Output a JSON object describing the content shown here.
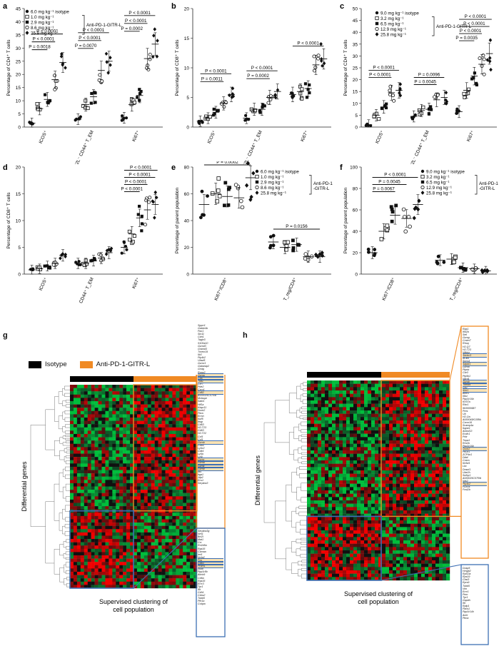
{
  "panels": {
    "a": {
      "label": "a",
      "ylabel": "Percentage of CD4⁺ T cells",
      "ylim": [
        0,
        45
      ],
      "yticks": [
        0,
        5,
        10,
        15,
        20,
        25,
        30,
        35,
        40,
        45
      ],
      "categories": [
        "ICOS⁺",
        "CD62L⁻ CD44⁺ T_EM",
        "Ki67⁺"
      ],
      "legend": [
        "6.0 mg kg⁻¹ isotype",
        "1.0 mg kg⁻¹",
        "2.9 mg kg⁻¹",
        "8.6 mg kg⁻¹",
        "25.8 mg kg⁻¹"
      ],
      "bracket_label": "Anti-PD-1-GITR-L",
      "groups": [
        {
          "means": [
            1.5,
            7.0,
            10.5,
            18.0,
            24.5
          ]
        },
        {
          "means": [
            3.0,
            8.5,
            11.5,
            21.5,
            25.0
          ]
        },
        {
          "means": [
            3.5,
            8.5,
            12.0,
            26.0,
            31.5
          ]
        }
      ],
      "pvalues": [
        {
          "cat": 0,
          "to": 2,
          "text": "P = 0.0018"
        },
        {
          "cat": 0,
          "to": 3,
          "text": "P < 0.0001"
        },
        {
          "cat": 0,
          "to": 4,
          "text": "P < 0.0001"
        },
        {
          "cat": 1,
          "to": 2,
          "text": "P = 0.0070"
        },
        {
          "cat": 1,
          "to": 3,
          "text": "P < 0.0001"
        },
        {
          "cat": 1,
          "to": 4,
          "text": "P < 0.0001"
        },
        {
          "cat": 2,
          "to": 2,
          "text": "P = 0.0002"
        },
        {
          "cat": 2,
          "to": 3,
          "text": "P < 0.0001"
        },
        {
          "cat": 2,
          "to": 4,
          "text": "P < 0.0001"
        }
      ]
    },
    "b": {
      "label": "b",
      "ylabel": "Percentage of CD8⁺ T cells",
      "ylim": [
        0,
        20
      ],
      "yticks": [
        0,
        5,
        10,
        15,
        20
      ],
      "categories": [
        "ICOS⁺",
        "CL62L⁻ CD44⁺ T_EM",
        "Ki67⁺"
      ],
      "groups": [
        {
          "means": [
            1.0,
            1.5,
            2.5,
            4.0,
            5.5
          ]
        },
        {
          "means": [
            1.5,
            3.0,
            3.0,
            5.0,
            6.0
          ]
        },
        {
          "means": [
            5.5,
            6.0,
            6.5,
            10.5,
            11.5
          ]
        }
      ],
      "pvalues": [
        {
          "cat": 0,
          "to": 3,
          "text": "P = 0.0011"
        },
        {
          "cat": 0,
          "to": 4,
          "text": "P < 0.0001"
        },
        {
          "cat": 1,
          "to": 3,
          "text": "P = 0.0002"
        },
        {
          "cat": 1,
          "to": 4,
          "text": "P < 0.0001"
        },
        {
          "cat": 2,
          "to": 4,
          "text": "P < 0.0001"
        }
      ]
    },
    "c": {
      "label": "c",
      "ylabel": "Percentage of CD4⁺ T cells",
      "ylim": [
        0,
        50
      ],
      "yticks": [
        0,
        5,
        10,
        15,
        20,
        25,
        30,
        35,
        40,
        45,
        50
      ],
      "categories": [
        "ICOS⁺",
        "CD62L⁻ CD44⁺ T_EM",
        "Ki67⁺"
      ],
      "legend": [
        "9.0 mg kg⁻¹ isotype",
        "3.2 mg kg⁻¹",
        "6.5 mg kg⁻¹",
        "12.9 mg kg⁻¹",
        "25.8 mg kg⁻¹"
      ],
      "bracket_label": "Anti-PD-1-GITR-L",
      "groups": [
        {
          "means": [
            1.0,
            5.0,
            8.5,
            14.5,
            15.5
          ]
        },
        {
          "means": [
            4.5,
            7.0,
            7.5,
            11.5,
            12.5
          ]
        },
        {
          "means": [
            6.5,
            15.5,
            21.5,
            26.5,
            31.0
          ]
        }
      ],
      "pvalues": [
        {
          "cat": 0,
          "to": 3,
          "text": "P < 0.0001"
        },
        {
          "cat": 0,
          "to": 4,
          "text": "P < 0.0001"
        },
        {
          "cat": 1,
          "to": 3,
          "text": "P = 0.0045"
        },
        {
          "cat": 1,
          "to": 4,
          "text": "P = 0.0096"
        },
        {
          "cat": 2,
          "to": 2,
          "text": "P = 0.0035"
        },
        {
          "cat": 2,
          "to": 3,
          "text": "P < 0.0001"
        },
        {
          "cat": 2,
          "to": 4,
          "text": "P < 0.0001"
        },
        {
          "cat": 2,
          "to": 5,
          "text": "P < 0.0001"
        }
      ]
    },
    "d": {
      "label": "d",
      "ylabel": "Percentage of CD8⁺ T cells",
      "ylim": [
        0,
        20
      ],
      "yticks": [
        0,
        5,
        10,
        15,
        20
      ],
      "categories": [
        "ICOS⁺",
        "CD62L⁻ CD44⁺ T_EM",
        "Ki67⁺"
      ],
      "groups": [
        {
          "means": [
            0.8,
            1.0,
            1.5,
            2.0,
            3.5
          ]
        },
        {
          "means": [
            2.0,
            2.0,
            2.5,
            3.0,
            4.0
          ]
        },
        {
          "means": [
            5.0,
            7.5,
            10.5,
            12.0,
            13.0
          ]
        }
      ],
      "pvalues": [
        {
          "cat": 2,
          "to": 2,
          "text": "P < 0.0001"
        },
        {
          "cat": 2,
          "to": 3,
          "text": "P < 0.0001"
        },
        {
          "cat": 2,
          "to": 4,
          "text": "P < 0.0001"
        },
        {
          "cat": 2,
          "to": 5,
          "text": "P < 0.0001"
        }
      ]
    },
    "e": {
      "label": "e",
      "ylabel": "Percentage of parent population",
      "ylim": [
        0,
        80
      ],
      "yticks": [
        0,
        20,
        40,
        60,
        80
      ],
      "categories": [
        "Ki67⁺/CD8⁺",
        "T_reg/CD4⁺"
      ],
      "legend": [
        "6.0 mg kg⁻¹ isotype",
        "1.0 mg kg⁻¹",
        "2.9 mg kg⁻¹",
        "8.6 mg kg⁻¹",
        "25.8 mg kg⁻¹"
      ],
      "bracket_label": "Anti-PD-1 -GITR-L",
      "groups": [
        {
          "means": [
            52,
            60,
            58,
            57,
            72
          ]
        },
        {
          "means": [
            24,
            20,
            22,
            13,
            13
          ]
        }
      ],
      "pvalues": [
        {
          "cat": 0,
          "to": 4,
          "text": "P = 0.0002"
        },
        {
          "cat": 1,
          "to": 4,
          "text": "P = 0.0156"
        }
      ]
    },
    "f": {
      "label": "f",
      "ylabel": "Percentage of parent population",
      "ylim": [
        0,
        100
      ],
      "yticks": [
        0,
        20,
        40,
        60,
        80,
        100
      ],
      "categories": [
        "Ki67⁺/CD8⁺",
        "T_reg/CD4⁺"
      ],
      "legend": [
        "9.0 mg kg⁻¹ isotype",
        "3.2 mg kg⁻¹",
        "6.5 mg kg⁻¹",
        "12.9 mg kg⁻¹",
        "25.8 mg kg⁻¹"
      ],
      "bracket_label": "Anti-PD-1 -GITR-L",
      "groups": [
        {
          "means": [
            20,
            40,
            55,
            52,
            65
          ]
        },
        {
          "means": [
            13,
            14,
            6,
            5,
            3
          ]
        }
      ],
      "pvalues": [
        {
          "cat": 0,
          "to": 2,
          "text": "P = 0.0067"
        },
        {
          "cat": 0,
          "to": 3,
          "text": "P = 0.0045"
        },
        {
          "cat": 0,
          "to": 4,
          "text": "P < 0.0001"
        }
      ]
    }
  },
  "heatmap": {
    "label_g": "g",
    "label_h": "h",
    "legend_isotype": "Isotype",
    "legend_treatment": "Anti-PD-1-GITR-L",
    "color_isotype": "#000000",
    "color_treatment": "#f08a24",
    "color_up": "#e0202a",
    "color_down": "#1f9a3a",
    "ylabel": "Differential genes",
    "xlabel": "Supervised clustering of cell population",
    "genes_g_top": [
      "Spprr1",
      "Gabbr4b",
      "Pax1",
      "Stx11",
      "Cdn1",
      "Tagln3",
      "S100a10",
      "Gzmd3",
      "Gramd3",
      "Tmem19",
      "Illr2",
      "Pip4k2",
      "Ubsd5",
      "Gzmc1",
      "Gabarap2",
      "Gmtg",
      "Rpap2",
      "Gzma",
      "Cd5",
      "Tud1",
      "Ccr7",
      "Pde2",
      "Cxcr4",
      "Cd82",
      "A930025C07Rik",
      "Mvtaupr",
      "Satb1",
      "Hif1a",
      "Klapr11",
      "Dock2",
      "Pbra",
      "Ermn",
      "Ikzf5",
      "Ifngr",
      "Cd63",
      "H2-T23",
      "Cd63",
      "H2-T22",
      "Ccl5",
      "Ccl5",
      "Gzmb",
      "Cd84",
      "Ly6c2",
      "Cdk4",
      "Ly6a",
      "Ly6i",
      "Gzmc",
      "Gzma",
      "Gzmk",
      "Gzmb",
      "Id4",
      "Itga1",
      "Jdp2",
      "Ecs1",
      "Serpina3"
    ],
    "genes_g_bottom": [
      "Serpina3g",
      "Nrn1",
      "Bcl2l",
      "Mat1",
      "Ccr",
      "Rn2d5a",
      "Rgs16",
      "Camaa",
      "Ier5",
      "Nr4a2",
      "Fos",
      "Cd83",
      "Prdm1",
      "Il6bb",
      "Ppp1r8b",
      "Abcb9",
      "Cd6a",
      "Rgs16",
      "Errc3",
      "Tpr1",
      "Ifit",
      "Cdh1",
      "Cdos2",
      "Tubb5",
      "Pfn1a",
      "Cobpa"
    ],
    "genes_h_top": [
      "Rgs1",
      "Ifnl2b",
      "Sell",
      "Gzmg",
      "Cmtm7",
      "Rhoq",
      "H2-Q7",
      "H2-T23",
      "Nfkbiz",
      "Serinc3",
      "Id-ahl",
      "Socs4",
      "Sdpbl1",
      "Gzma",
      "Plpnb",
      "Cbr3",
      "Pip5k1",
      "Nkrd1",
      "Gzmb",
      "Tnfrsf9",
      "Gp2",
      "Klrk1",
      "Bhlh1",
      "Il6st",
      "Ppp1r16b",
      "Krt37a",
      "Rbc1",
      "9630006B7",
      "Pres",
      "Ub",
      "H2-Oa",
      "A930045K15Rik",
      "Cxcm16",
      "Scamp4a",
      "Ikgne1",
      "Ankrd13",
      "Ecdh1",
      "Prkr",
      "Tnpa1",
      "Rrn2b",
      "Ppp1r16b",
      "Dock2",
      "Pik3r1",
      "ZCP4n1",
      "Dtbtl",
      "Cnem",
      "Kir5d1",
      "Lbc",
      "Dnsnl1",
      "Ube2h",
      "Sulhp1",
      "A930025C07Rik",
      "Nrk2",
      "Pip4k2",
      "H2b3s",
      "Fosl2b"
    ],
    "genes_h_bottom": [
      "Dusp5",
      "Hmgb2",
      "Rpl13a",
      "Rps19",
      "Cbsl3",
      "Eprs9",
      "Tubb5",
      "Vim",
      "Errc1",
      "Pnm",
      "Tpr1",
      "Gapdh",
      "Ifit",
      "Rplp1",
      "Pack1",
      "Ppp1r14b",
      "Anhi",
      "Ptma"
    ]
  }
}
